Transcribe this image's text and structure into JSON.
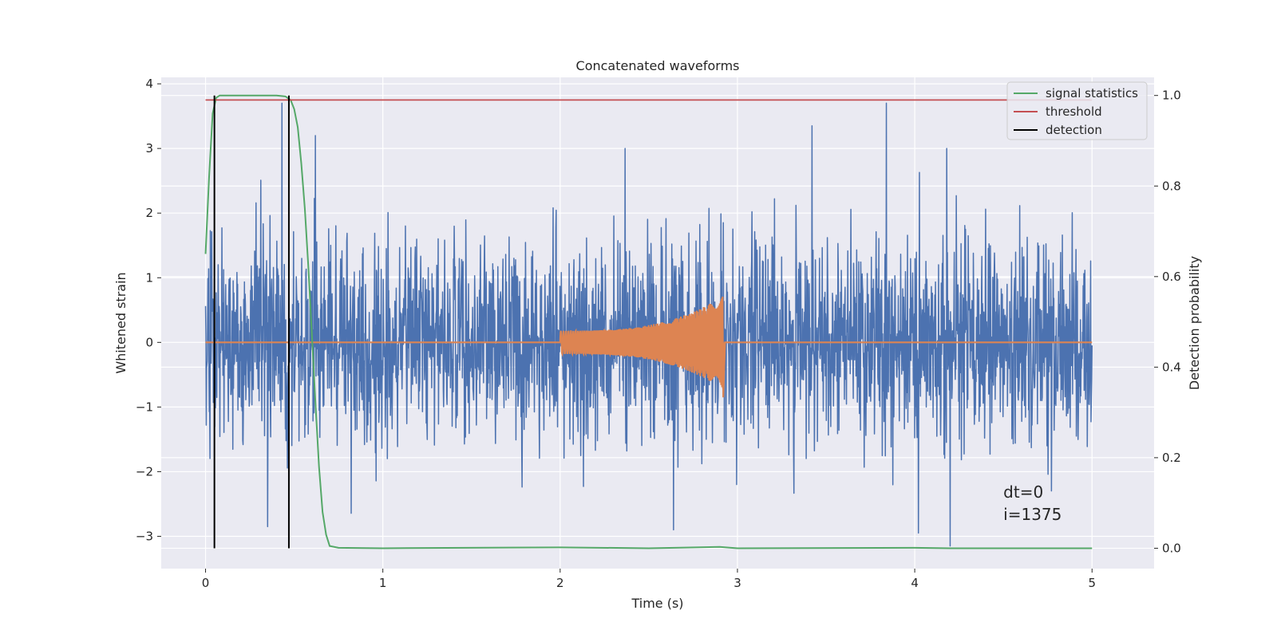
{
  "chart_data": {
    "type": "line",
    "title": "Concatenated waveforms",
    "xlabel": "Time (s)",
    "ylabel": "Whitened strain",
    "ylabel_right": "Detection probability",
    "xlim": [
      -0.25,
      5.35
    ],
    "ylim": [
      -3.5,
      4.1
    ],
    "ylim_right": [
      -0.045,
      1.04
    ],
    "x_ticks": [
      0,
      1,
      2,
      3,
      4,
      5
    ],
    "x_tick_labels": [
      "0",
      "1",
      "2",
      "3",
      "4",
      "5"
    ],
    "y_ticks": [
      -3,
      -2,
      -1,
      0,
      1,
      2,
      3,
      4
    ],
    "y_tick_labels": [
      "−3",
      "−2",
      "−1",
      "0",
      "1",
      "2",
      "3",
      "4"
    ],
    "y_right_ticks": [
      0.0,
      0.2,
      0.4,
      0.6,
      0.8,
      1.0
    ],
    "y_right_tick_labels": [
      "0.0",
      "0.2",
      "0.4",
      "0.6",
      "0.8",
      "1.0"
    ],
    "grid": true,
    "legend_position": "top-right",
    "series": [
      {
        "name": "",
        "axis": "left",
        "color": "#4c72b0",
        "kind": "noise",
        "x_range": [
          0,
          5
        ],
        "typical_amplitude": [
          -1.5,
          1.6
        ],
        "peak_values": [
          {
            "x": 0.43,
            "y": 3.7
          },
          {
            "x": 0.62,
            "y": 3.2
          },
          {
            "x": 3.42,
            "y": 3.35
          },
          {
            "x": 3.84,
            "y": 3.7
          },
          {
            "x": 2.64,
            "y": -2.9
          },
          {
            "x": 4.2,
            "y": -3.15
          },
          {
            "x": 4.02,
            "y": -2.95
          },
          {
            "x": 0.35,
            "y": -2.85
          }
        ]
      },
      {
        "name": "",
        "axis": "left",
        "color": "#dd8452",
        "kind": "chirp",
        "x_range": [
          0,
          5
        ],
        "chirp_start": 2.0,
        "chirp_end": 2.92,
        "chirp_amplitude_start": 0.18,
        "chirp_amplitude_end": 0.72
      },
      {
        "name": "signal statistics",
        "axis": "right",
        "color": "#55a868",
        "x": [
          0,
          0.02,
          0.04,
          0.06,
          0.08,
          0.1,
          0.2,
          0.3,
          0.4,
          0.45,
          0.48,
          0.5,
          0.52,
          0.54,
          0.56,
          0.58,
          0.6,
          0.62,
          0.64,
          0.66,
          0.68,
          0.7,
          0.75,
          1.0,
          2.0,
          2.5,
          2.9,
          3.0,
          4.0,
          4.2,
          5.0
        ],
        "values": [
          0.65,
          0.82,
          0.96,
          0.995,
          1.0,
          1.0,
          1.0,
          1.0,
          1.0,
          0.998,
          0.99,
          0.97,
          0.93,
          0.85,
          0.75,
          0.62,
          0.47,
          0.32,
          0.18,
          0.08,
          0.03,
          0.005,
          0.001,
          0.0,
          0.002,
          0.0,
          0.003,
          0.0,
          0.001,
          0.0,
          0.0
        ]
      },
      {
        "name": "threshold",
        "axis": "right",
        "color": "#c44e52",
        "x": [
          0,
          5
        ],
        "values": [
          0.99,
          0.99
        ]
      },
      {
        "name": "detection",
        "axis": "right",
        "color": "#000000",
        "vlines": [
          0.05,
          0.47
        ],
        "vline_range": [
          0,
          1
        ]
      }
    ],
    "annotations": [
      {
        "text": "dt=0",
        "x": 4.5,
        "y": -2.4
      },
      {
        "text": "i=1375",
        "x": 4.5,
        "y": -2.75
      }
    ]
  }
}
